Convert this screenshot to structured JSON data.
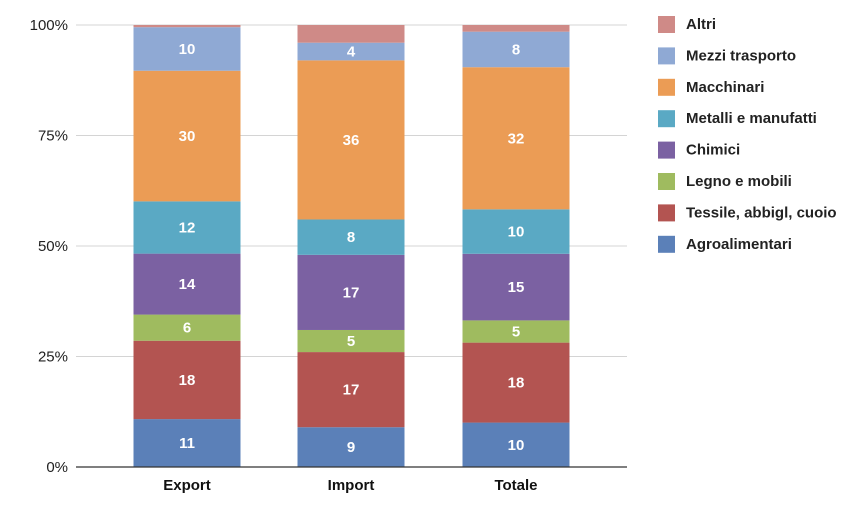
{
  "chart_data": {
    "type": "bar",
    "stacked": true,
    "normalized": true,
    "categories": [
      "Export",
      "Import",
      "Totale"
    ],
    "series": [
      {
        "name": "Agroalimentari",
        "color": "#5b80b8",
        "values": [
          11,
          9,
          10
        ]
      },
      {
        "name": "Tessile, abbigl, cuoio",
        "color": "#b35451",
        "values": [
          18,
          17,
          18
        ]
      },
      {
        "name": "Legno e mobili",
        "color": "#9fbb5f",
        "values": [
          6,
          5,
          5
        ]
      },
      {
        "name": "Chimici",
        "color": "#7b61a2",
        "values": [
          14,
          17,
          15
        ]
      },
      {
        "name": "Metalli e manufatti",
        "color": "#5aa9c4",
        "values": [
          12,
          8,
          10
        ]
      },
      {
        "name": "Macchinari",
        "color": "#eb9c55",
        "values": [
          30,
          36,
          32
        ]
      },
      {
        "name": "Mezzi trasporto",
        "color": "#8fa9d4",
        "values": [
          10,
          4,
          8
        ]
      },
      {
        "name": "Altri",
        "color": "#cf8a87",
        "values": [
          0.5,
          4,
          1.5
        ]
      }
    ],
    "data_labels": [
      [
        "11",
        "9",
        "10"
      ],
      [
        "18",
        "17",
        "18"
      ],
      [
        "6",
        "5",
        "5"
      ],
      [
        "14",
        "17",
        "15"
      ],
      [
        "12",
        "8",
        "10"
      ],
      [
        "30",
        "36",
        "32"
      ],
      [
        "10",
        "4",
        "8"
      ],
      [
        "",
        "",
        ""
      ]
    ],
    "y_ticks": [
      "0%",
      "25%",
      "50%",
      "75%",
      "100%"
    ],
    "y_tick_values": [
      0,
      25,
      50,
      75,
      100
    ],
    "ylim": [
      0,
      100
    ],
    "title": "",
    "xlabel": "",
    "ylabel": "",
    "grid": true,
    "legend_position": "right",
    "legend_order": [
      "Altri",
      "Mezzi trasporto",
      "Macchinari",
      "Metalli e manufatti",
      "Chimici",
      "Legno e mobili",
      "Tessile, abbigl, cuoio",
      "Agroalimentari"
    ]
  }
}
